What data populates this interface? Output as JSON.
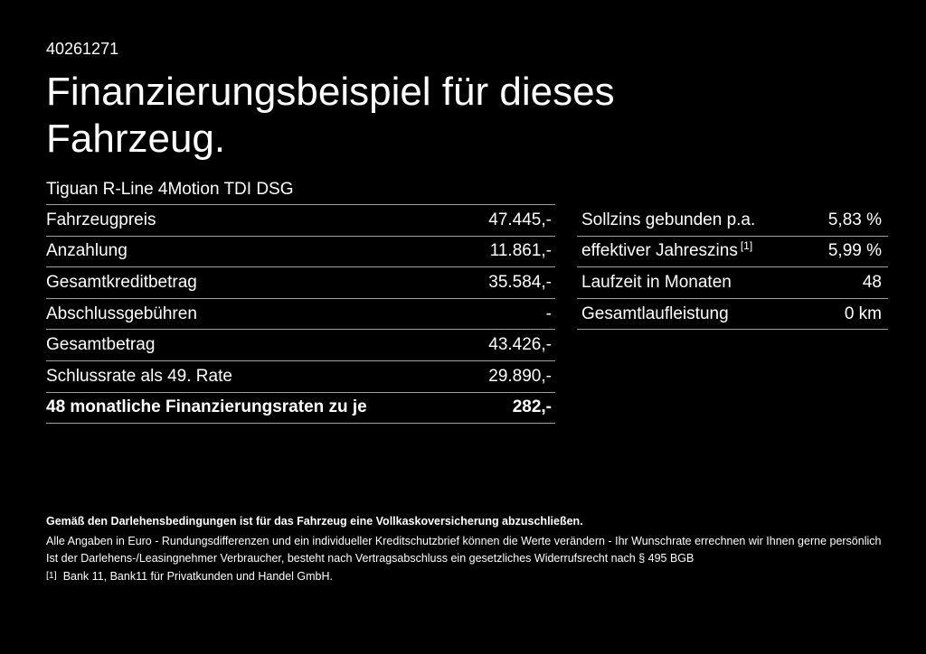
{
  "header": {
    "doc_id": "40261271",
    "title": "Finanzierungsbeispiel für dieses Fahrzeug.",
    "vehicle_model": "Tiguan R-Line 4Motion TDI DSG"
  },
  "finance_table": {
    "rows": [
      {
        "label": "Fahrzeugpreis",
        "value": "47.445,-",
        "emphasis": false
      },
      {
        "label": "Anzahlung",
        "value": "11.861,-",
        "emphasis": false
      },
      {
        "label": "Gesamtkreditbetrag",
        "value": "35.584,-",
        "emphasis": false
      },
      {
        "label": "Abschlussgebühren",
        "value": "-",
        "emphasis": false
      },
      {
        "label": "Gesamtbetrag",
        "value": "43.426,-",
        "emphasis": false
      },
      {
        "label": "Schlussrate als 49. Rate",
        "value": "29.890,-",
        "emphasis": false
      },
      {
        "label": "48 monatliche Finanzierungsraten zu je",
        "value": "282,-",
        "emphasis": true
      }
    ]
  },
  "conditions_table": {
    "rows": [
      {
        "label": "Sollzins gebunden p.a.",
        "sup": "",
        "value": "5,83 %"
      },
      {
        "label": "effektiver Jahreszins",
        "sup": "[1]",
        "value": "5,99 %"
      },
      {
        "label": "Laufzeit in Monaten",
        "sup": "",
        "value": "48"
      },
      {
        "label": "Gesamtlaufleistung",
        "sup": "",
        "value": "0 km"
      }
    ]
  },
  "footer": {
    "insurance_note": "Gemäß den Darlehensbedingungen ist für das Fahrzeug eine Vollkaskoversicherung abzuschließen.",
    "disclaimer_values": "Alle Angaben in Euro - Rundungsdifferenzen und ein individueller Kreditschutzbrief können die Werte verändern - Ihr Wunschrate errechnen wir Ihnen gerne persönlich",
    "disclaimer_withdrawal": "Ist der Darlehens-/Leasingnehmer Verbraucher, besteht nach Vertragsabschluss ein gesetzliches Widerrufsrecht nach § 495 BGB",
    "footnote_marker": "[1]",
    "footnote_text": "Bank 11, Bank11 für Privatkunden und Handel GmbH."
  },
  "colors": {
    "background": "#000000",
    "text": "#ffffff",
    "divider": "#a2a2a2"
  }
}
